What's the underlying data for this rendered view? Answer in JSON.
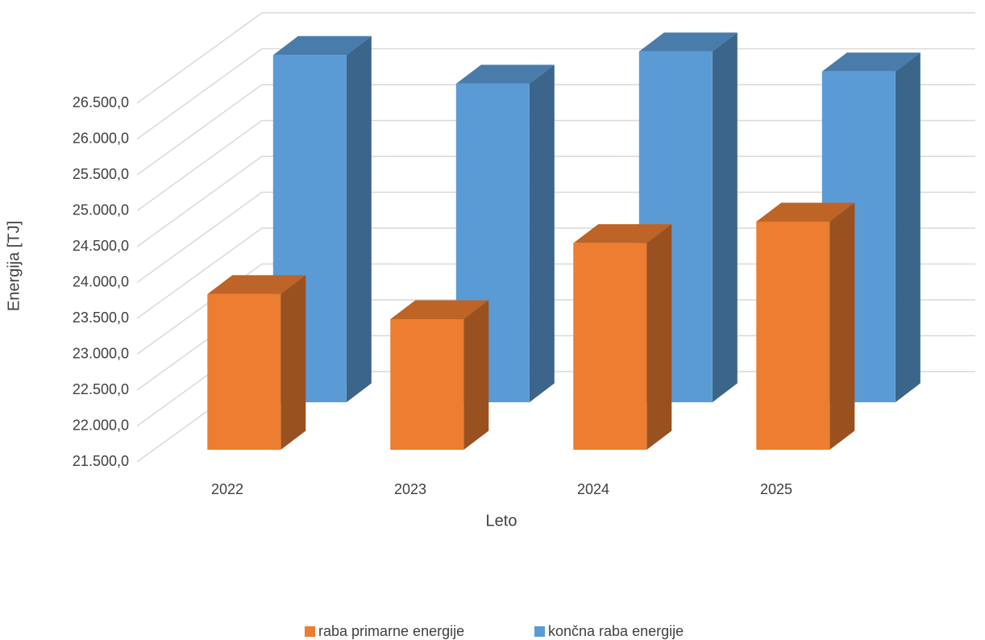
{
  "chart_data": {
    "type": "bar3d",
    "x_label": "Leto",
    "y_label": "Energija [TJ]",
    "categories": [
      "2022",
      "2023",
      "2024",
      "2025"
    ],
    "series": [
      {
        "name": "raba primarne energije",
        "color": "#ed7d31",
        "values": [
          23670,
          23320,
          24380,
          24680
        ]
      },
      {
        "name": "končna raba energije",
        "color": "#5b9bd5",
        "values": [
          26340,
          25940,
          26390,
          26110
        ]
      }
    ],
    "ylim": [
      21500,
      26500
    ],
    "yticks": [
      {
        "value": 21500,
        "label": "21.500,0"
      },
      {
        "value": 22000,
        "label": "22.000,0"
      },
      {
        "value": 22500,
        "label": "22.500,0"
      },
      {
        "value": 23000,
        "label": "23.000,0"
      },
      {
        "value": 23500,
        "label": "23.500,0"
      },
      {
        "value": 24000,
        "label": "24.000,0"
      },
      {
        "value": 24500,
        "label": "24.500,0"
      },
      {
        "value": 25000,
        "label": "25.000,0"
      },
      {
        "value": 25500,
        "label": "25.500,0"
      },
      {
        "value": 26000,
        "label": "26.000,0"
      },
      {
        "value": 26500,
        "label": "26.500,0"
      }
    ],
    "grid": true,
    "legend": "bottom"
  }
}
